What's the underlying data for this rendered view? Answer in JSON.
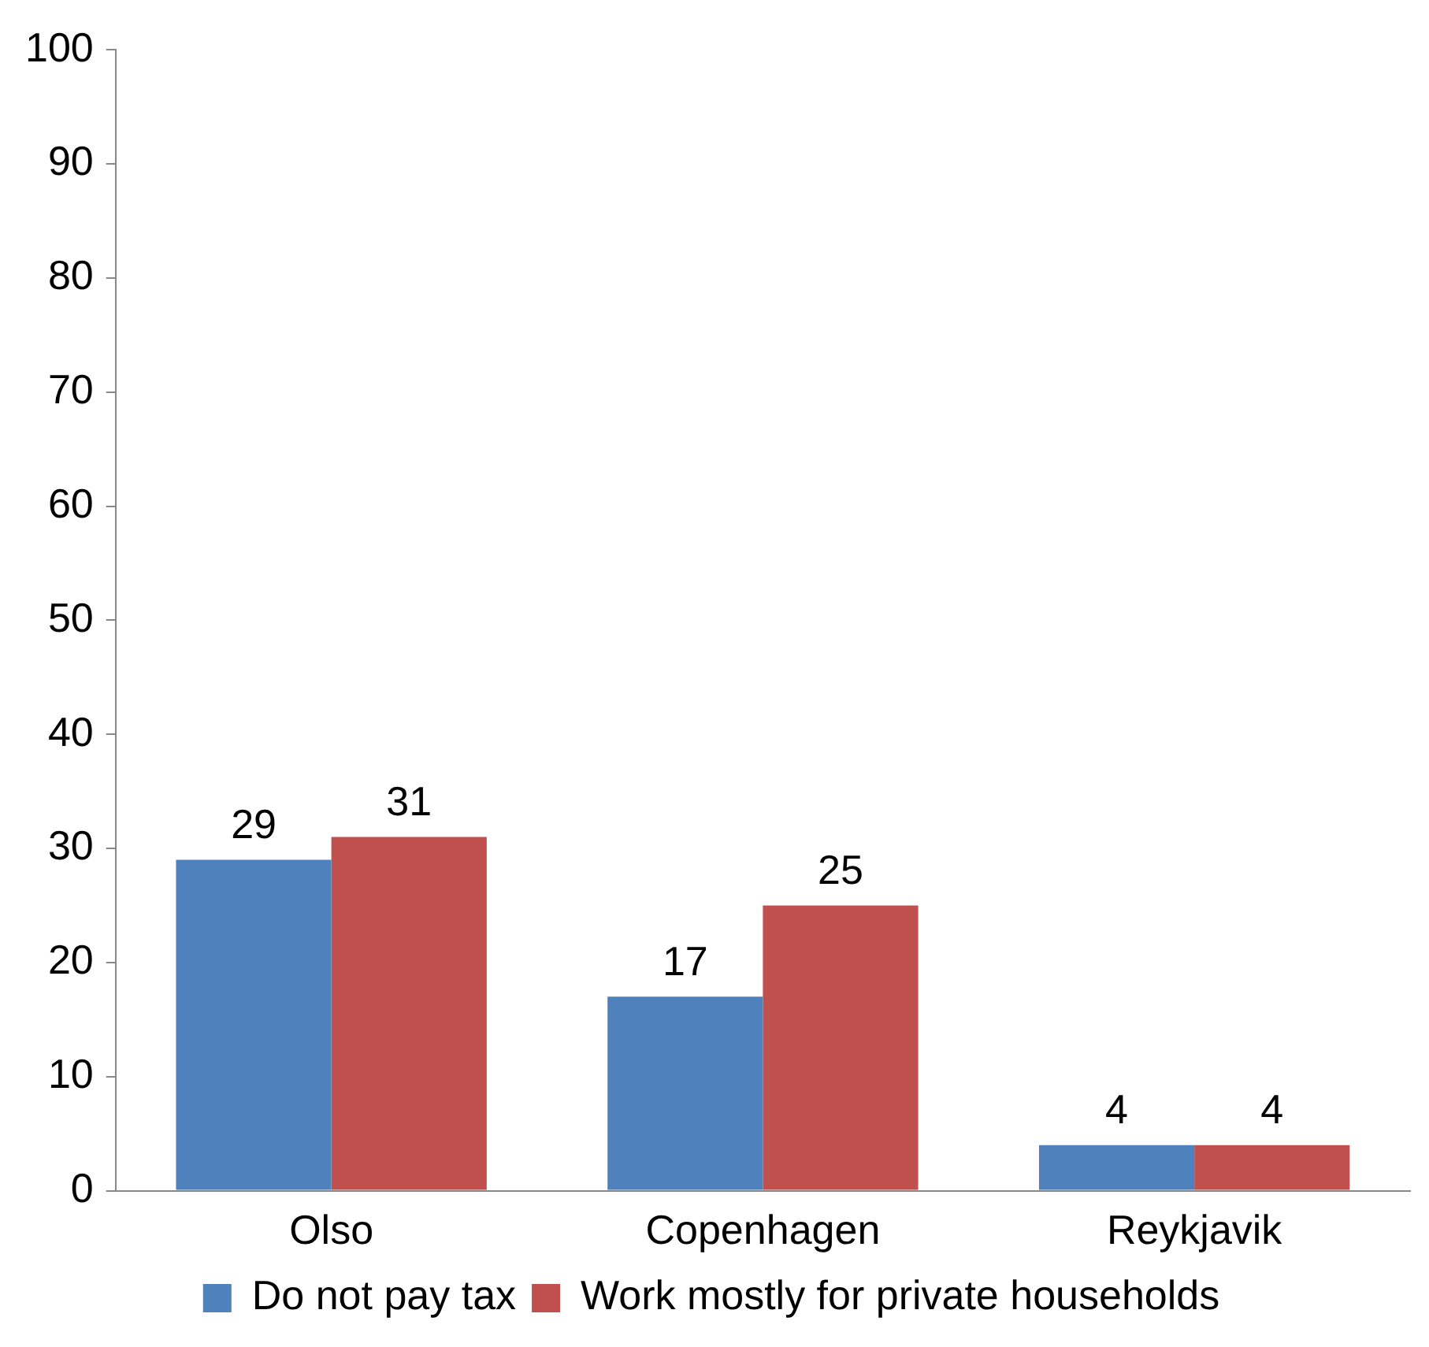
{
  "chart_data": {
    "type": "bar",
    "categories": [
      "Olso",
      "Copenhagen",
      "Reykjavik"
    ],
    "series": [
      {
        "name": "Do not pay tax",
        "color": "#4f81bd",
        "values": [
          29,
          17,
          4
        ]
      },
      {
        "name": "Work mostly for private households",
        "color": "#c0504d",
        "values": [
          31,
          25,
          4
        ]
      }
    ],
    "ylim": [
      0,
      100
    ],
    "yticks": [
      0,
      10,
      20,
      30,
      40,
      50,
      60,
      70,
      80,
      90,
      100
    ],
    "grid": false,
    "legend": "bottom",
    "data_labels": true
  }
}
